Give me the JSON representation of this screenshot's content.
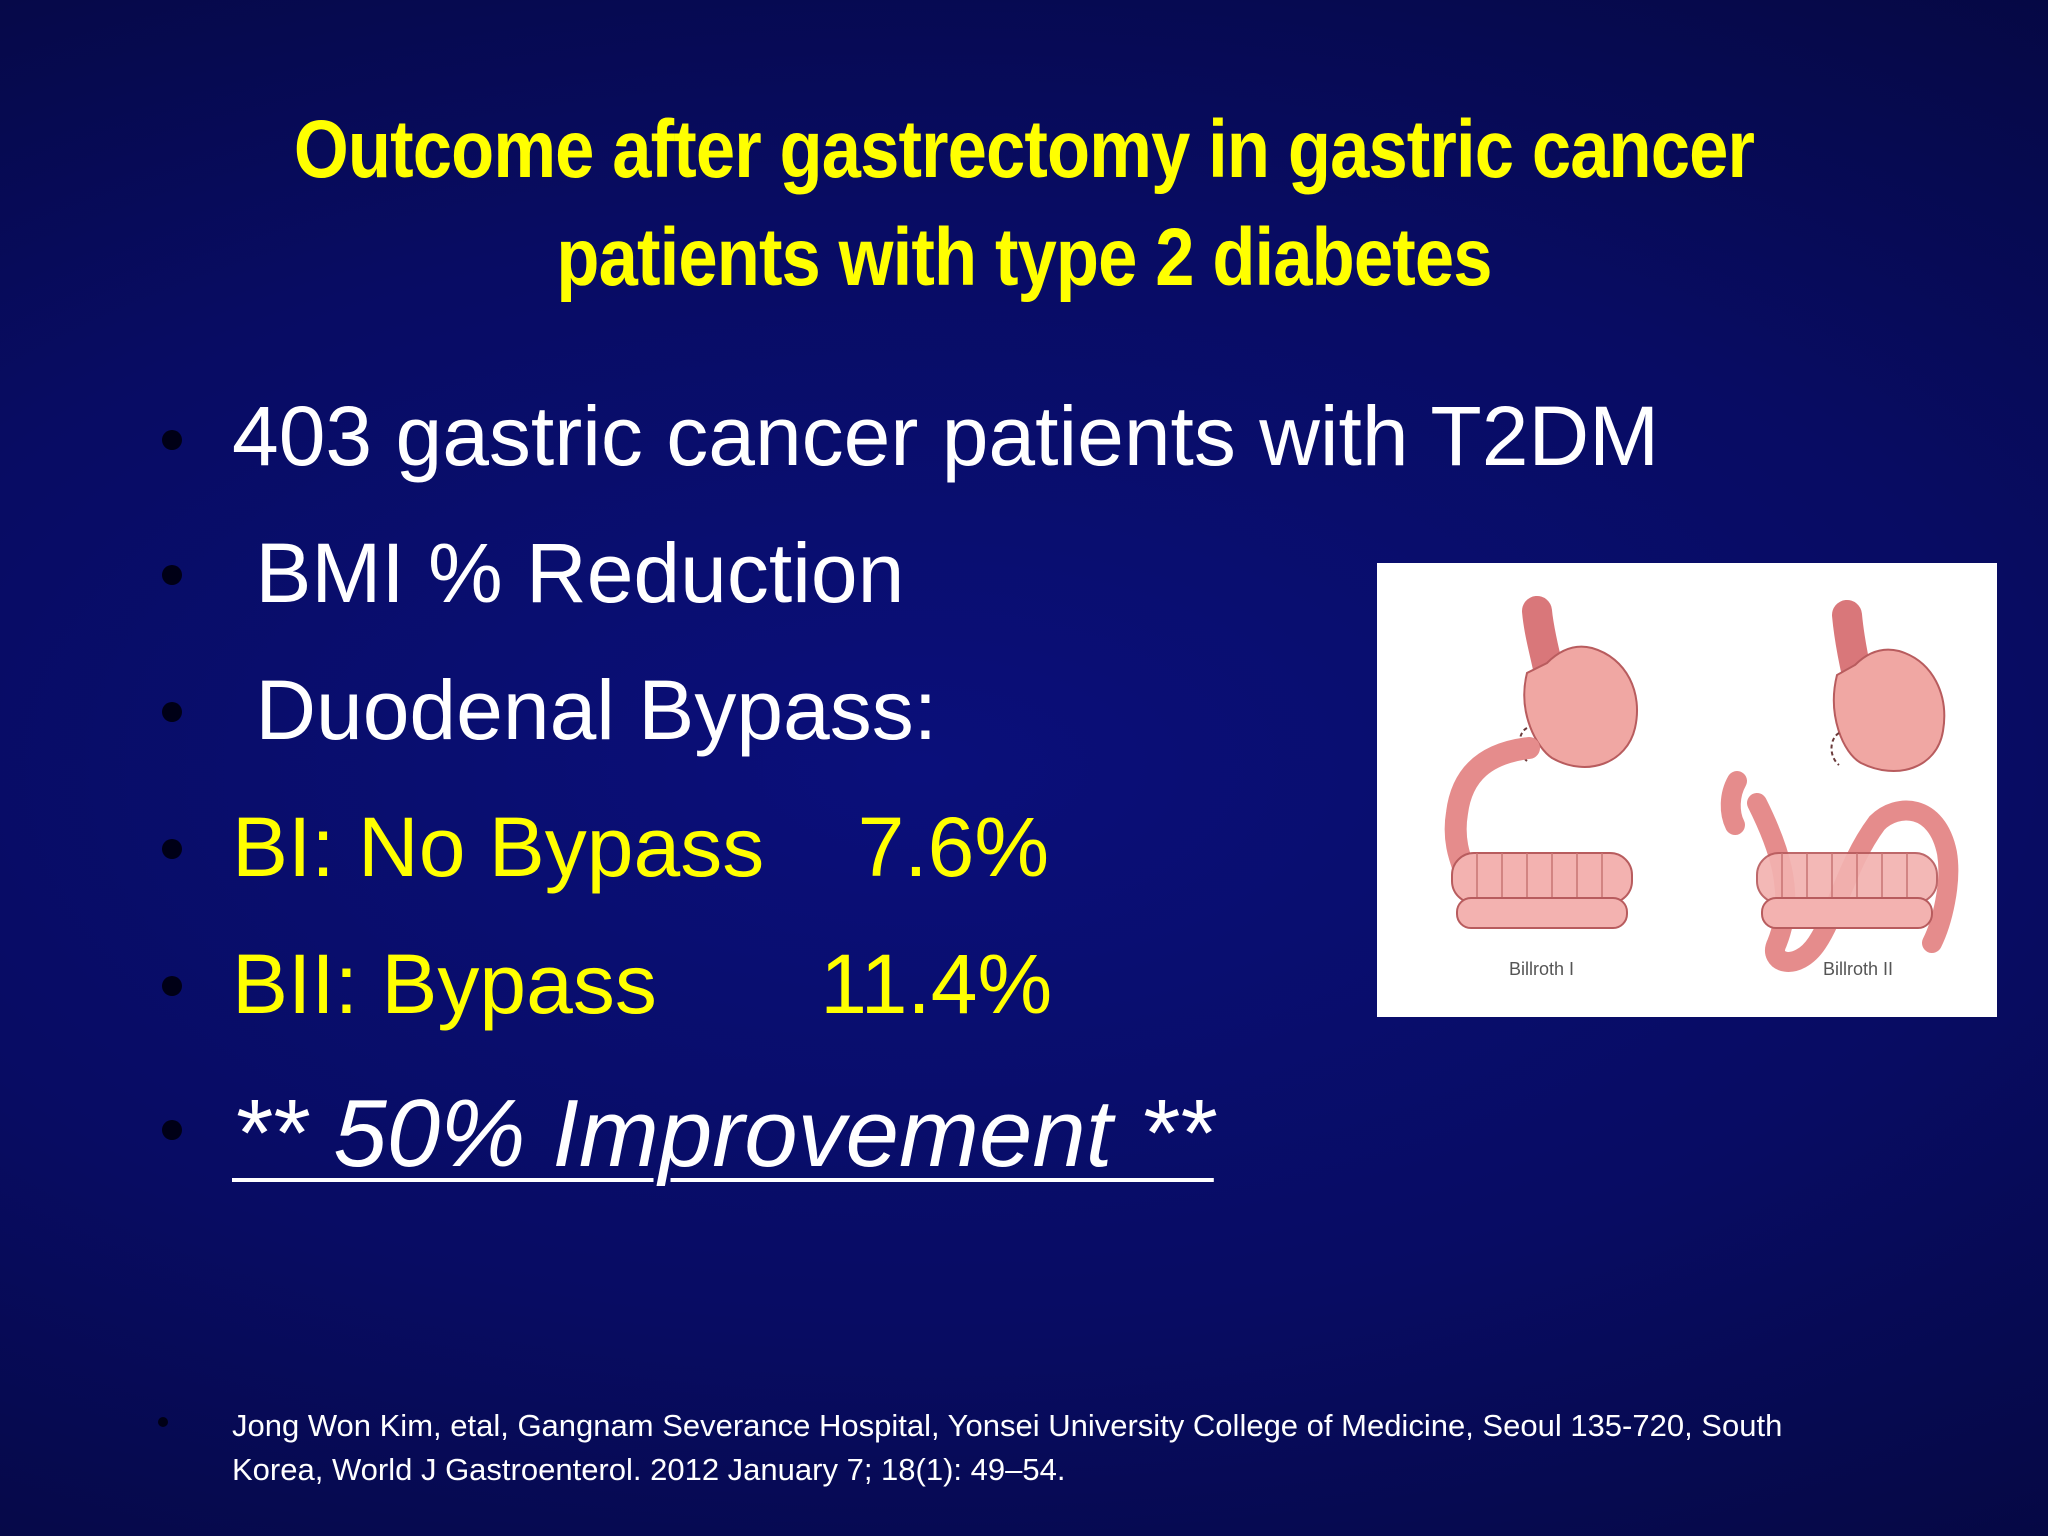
{
  "slide": {
    "title_line1": "Outcome after gastrectomy in gastric cancer",
    "title_line2": "patients with type 2 diabetes",
    "bullets": [
      {
        "text": "403 gastric cancer patients with T2DM",
        "color": "#ffffff"
      },
      {
        "text": " BMI % Reduction",
        "color": "#ffffff"
      },
      {
        "text": " Duodenal Bypass:",
        "color": "#ffffff"
      },
      {
        "text": "BI: No Bypass    7.6%",
        "color": "#ffff00"
      },
      {
        "text": "BII: Bypass       11.4%",
        "color": "#ffff00"
      },
      {
        "text": "** 50% Improvement **",
        "color": "#ffffff"
      }
    ],
    "figure": {
      "label_left": "Billroth I",
      "label_right": "Billroth II"
    },
    "reference": "Jong Won Kim, etal, Gangnam Severance Hospital, Yonsei University College of Medicine, Seoul 135-720, South Korea, World J Gastroenterol. 2012 January 7; 18(1): 49–54."
  }
}
